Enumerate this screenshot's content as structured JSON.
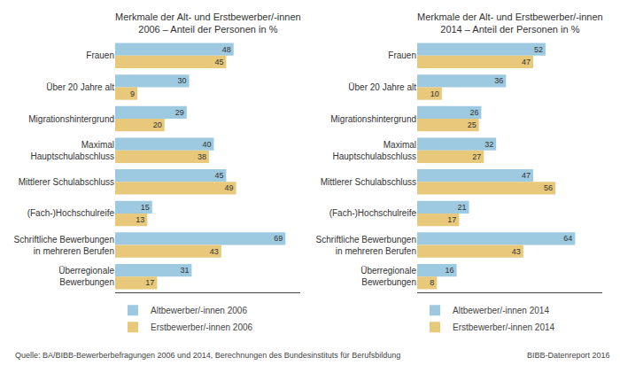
{
  "chart_data": [
    {
      "type": "bar",
      "orientation": "horizontal",
      "title": "Merkmale der Alt- und Erstbewerber/-innen\n2006 – Anteil der Personen in %",
      "categories": [
        "Frauen",
        "Über 20 Jahre alt",
        "Migrationshintergrund",
        "Maximal\nHauptschulabschluss",
        "Mittlerer Schulabschluss",
        "(Fach-)Hochschulreife",
        "Schriftliche Bewerbungen\nin mehreren Berufen",
        "Überregionale\nBewerbungen"
      ],
      "series": [
        {
          "name": "Altbewerber/-innen 2006",
          "color": "#9ecae1",
          "values": [
            48,
            30,
            29,
            40,
            45,
            15,
            69,
            31
          ]
        },
        {
          "name": "Erstbewerber/-innen 2006",
          "color": "#e8c87a",
          "values": [
            45,
            9,
            20,
            38,
            49,
            13,
            43,
            17
          ]
        }
      ],
      "xlim": [
        0,
        75
      ],
      "grid": false,
      "legend": "bottom",
      "data_labels": true,
      "tick_labels": "y",
      "annotations": [
        {
          "text": "Quelle: BA/BIBB-Bewerberbefragungen 2006 und 2014, Berechnungen des Bundesinstituts für Berufsbildung"
        }
      ]
    },
    {
      "type": "bar",
      "orientation": "horizontal",
      "title": "Merkmale der Alt- und Erstbewerber/-innen\n2014 – Anteil der Personen in %",
      "categories": [
        "Frauen",
        "Über 20 Jahre alt",
        "Migrationshintergrund",
        "Maximal\nHauptschulabschluss",
        "Mittlerer Schulabschluss",
        "(Fach-)Hochschulreife",
        "Schriftliche Bewerbungen\nin mehreren Berufen",
        "Überregionale\nBewerbungen"
      ],
      "series": [
        {
          "name": "Altbewerber/-innen 2014",
          "color": "#9ecae1",
          "values": [
            52,
            36,
            26,
            32,
            47,
            21,
            64,
            16
          ]
        },
        {
          "name": "Erstbewerber/-innen 2014",
          "color": "#e8c87a",
          "values": [
            47,
            10,
            25,
            27,
            56,
            17,
            43,
            8
          ]
        }
      ],
      "xlim": [
        0,
        75
      ],
      "grid": false,
      "legend": "bottom",
      "data_labels": true,
      "tick_labels": "y",
      "annotations": [
        {
          "text": "BIBB-Datenreport 2016"
        }
      ]
    }
  ]
}
